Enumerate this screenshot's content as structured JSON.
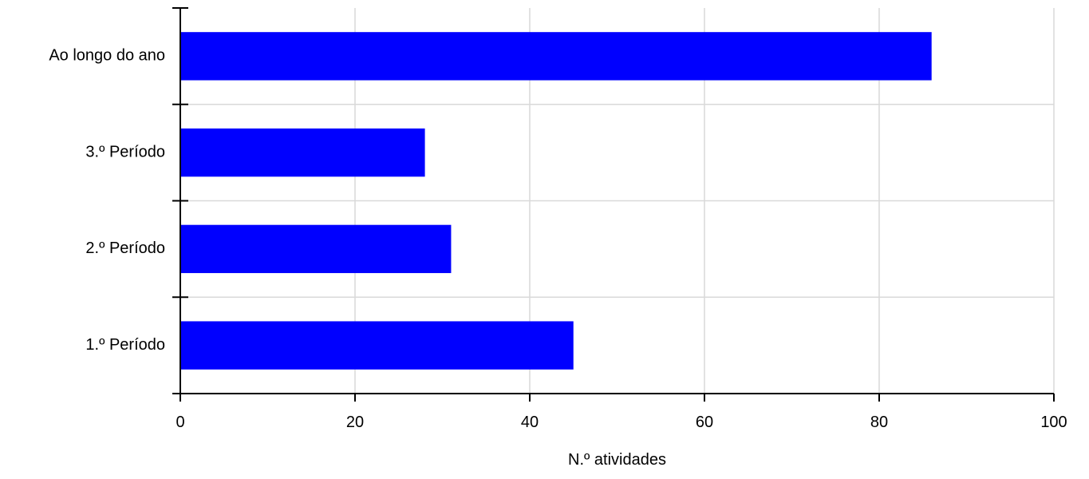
{
  "chart_data": {
    "type": "bar",
    "orientation": "horizontal",
    "title": "",
    "xlabel": "N.º atividades",
    "ylabel": "",
    "categories": [
      "Ao longo do ano",
      "3.º Período",
      "2.º Período",
      "1.º Período"
    ],
    "values": [
      86,
      28,
      31,
      45
    ],
    "xlim": [
      0,
      100
    ],
    "xticks": [
      0,
      20,
      40,
      60,
      80,
      100
    ],
    "grid": true,
    "legend": "none",
    "colors": {
      "bar": "#0000ff",
      "grid": "#d9d9d9",
      "axis": "#000000"
    }
  }
}
